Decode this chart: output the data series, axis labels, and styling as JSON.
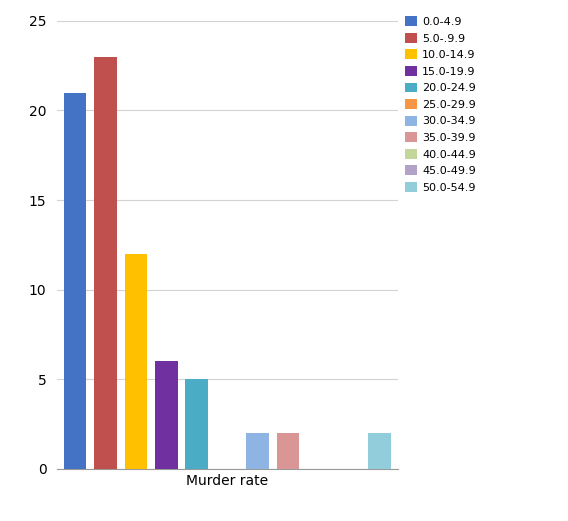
{
  "legend_labels": [
    "0.0-4.9",
    "5.0-.9.9",
    "10.0-14.9",
    "15.0-19.9",
    "20.0-24.9",
    "25.0-29.9",
    "30.0-34.9",
    "35.0-39.9",
    "40.0-44.9",
    "45.0-49.9",
    "50.0-54.9"
  ],
  "values": [
    21,
    23,
    12,
    6,
    5,
    0,
    2,
    2,
    0,
    0,
    2
  ],
  "colors": [
    "#4472C4",
    "#C0504D",
    "#FFC000",
    "#7030A0",
    "#4BACC6",
    "#F79646",
    "#8EB4E3",
    "#D99694",
    "#C4D79B",
    "#B2A2C7",
    "#92CDDC"
  ],
  "xlabel": "Murder rate",
  "ylim": [
    0,
    25
  ],
  "yticks": [
    0,
    5,
    10,
    15,
    20,
    25
  ],
  "background_color": "#ffffff",
  "grid_color": "#d3d3d3",
  "bar_width": 0.75
}
